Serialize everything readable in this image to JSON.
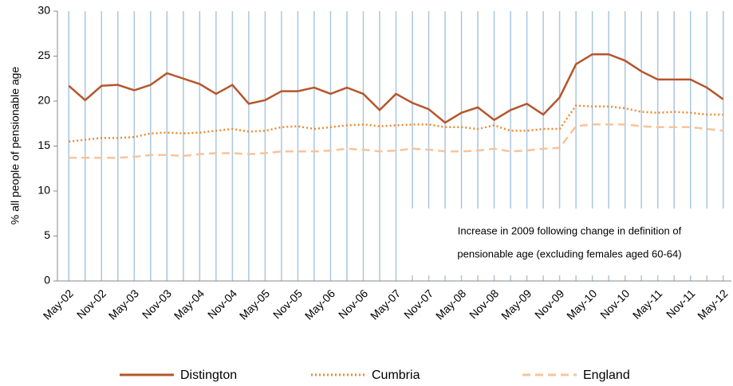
{
  "chart_data": {
    "type": "line",
    "y_label": "% all people of pensionable age",
    "annotation": [
      "Increase in 2009 following change in definition of",
      "pensionable age (excluding females aged 60-64)"
    ],
    "categories": [
      "May-02",
      null,
      "Nov-02",
      null,
      "May-03",
      null,
      "Nov-03",
      null,
      "May-04",
      null,
      "Nov-04",
      null,
      "May-05",
      null,
      "Nov-05",
      null,
      "May-06",
      null,
      "Nov-06",
      null,
      "May-07",
      null,
      "Nov-07",
      null,
      "May-08",
      null,
      "Nov-08",
      null,
      "May-09",
      null,
      "Nov-09",
      null,
      "May-10",
      null,
      "Nov-10",
      null,
      "May-11",
      null,
      "Nov-11",
      null,
      "May-12"
    ],
    "series": [
      {
        "name": "Distington",
        "color": "#b5562b",
        "dash": "solid",
        "values": [
          21.7,
          20.1,
          21.7,
          21.8,
          21.2,
          21.8,
          23.1,
          22.5,
          21.9,
          20.8,
          21.8,
          19.7,
          20.1,
          21.1,
          21.1,
          21.5,
          20.8,
          21.5,
          20.8,
          19.0,
          20.8,
          19.8,
          19.1,
          17.6,
          18.7,
          19.3,
          17.9,
          19.0,
          19.7,
          18.5,
          20.4,
          24.1,
          25.2,
          25.2,
          24.5,
          23.3,
          22.4,
          22.4,
          22.4,
          21.5,
          20.2
        ]
      },
      {
        "name": "Cumbria",
        "color": "#f08a2c",
        "dash": "dotted",
        "values": [
          15.5,
          15.7,
          15.9,
          15.9,
          16.0,
          16.4,
          16.5,
          16.4,
          16.5,
          16.7,
          16.9,
          16.6,
          16.7,
          17.1,
          17.2,
          16.9,
          17.1,
          17.3,
          17.4,
          17.2,
          17.3,
          17.4,
          17.4,
          17.1,
          17.1,
          16.9,
          17.3,
          16.7,
          16.7,
          16.9,
          16.9,
          19.5,
          19.4,
          19.4,
          19.2,
          18.8,
          18.7,
          18.8,
          18.7,
          18.5,
          18.5
        ]
      },
      {
        "name": "England",
        "color": "#f8c39a",
        "dash": "dashed",
        "values": [
          13.7,
          13.7,
          13.7,
          13.7,
          13.8,
          14.0,
          14.0,
          13.9,
          14.1,
          14.2,
          14.2,
          14.1,
          14.2,
          14.4,
          14.4,
          14.4,
          14.5,
          14.7,
          14.6,
          14.4,
          14.5,
          14.7,
          14.6,
          14.4,
          14.4,
          14.5,
          14.7,
          14.4,
          14.5,
          14.7,
          14.8,
          17.2,
          17.4,
          17.4,
          17.4,
          17.2,
          17.1,
          17.1,
          17.1,
          16.9,
          16.7
        ]
      }
    ],
    "ylim": [
      0,
      30
    ],
    "yticks": [
      0,
      5,
      10,
      15,
      20,
      25,
      30
    ],
    "vertical_grid": true,
    "grid_color": "#a9c6e0"
  }
}
